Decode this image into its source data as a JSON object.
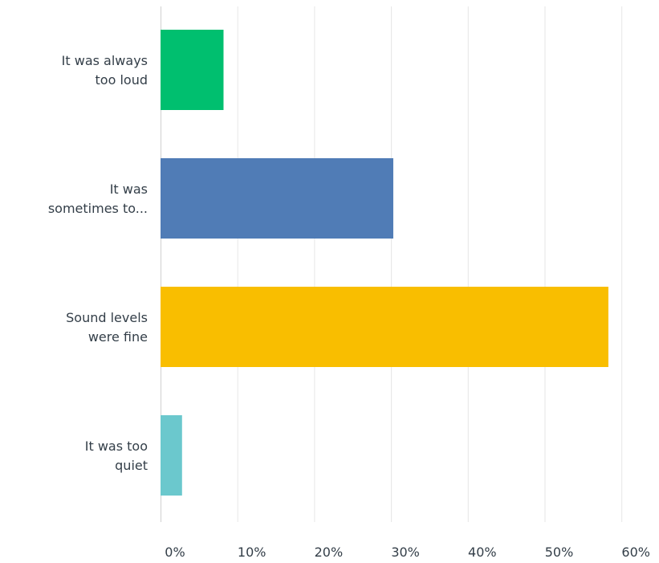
{
  "chart_data": {
    "type": "bar",
    "orientation": "horizontal",
    "categories": [
      [
        "It was always",
        "too loud"
      ],
      [
        "It was",
        "sometimes to..."
      ],
      [
        "Sound levels",
        "were fine"
      ],
      [
        "It was too",
        "quiet"
      ]
    ],
    "values": [
      8.2,
      30.3,
      58.3,
      2.8
    ],
    "colors": [
      "#00bf6f",
      "#507cb6",
      "#f9be00",
      "#6bc8cd"
    ],
    "xlim": [
      0,
      62
    ],
    "x_ticks": [
      0,
      10,
      20,
      30,
      40,
      50,
      60
    ],
    "x_tick_labels": [
      "0%",
      "10%",
      "20%",
      "30%",
      "40%",
      "50%",
      "60%"
    ],
    "grid": true,
    "title": "",
    "xlabel": "",
    "ylabel": ""
  }
}
